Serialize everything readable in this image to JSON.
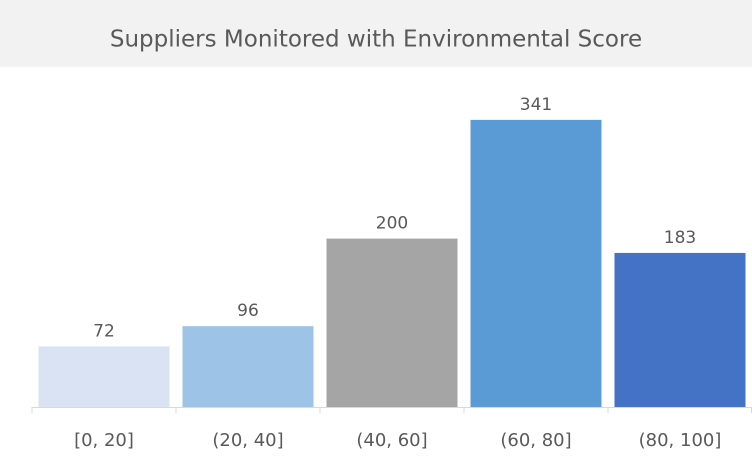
{
  "chart_data": {
    "type": "bar",
    "title": "Suppliers Monitored with Environmental Score",
    "categories": [
      "[0, 20]",
      "(20, 40]",
      "(40, 60]",
      "(60, 80]",
      "(80, 100]"
    ],
    "values": [
      72,
      96,
      200,
      341,
      183
    ],
    "colors": [
      "#dae3f3",
      "#9dc3e6",
      "#a5a5a5",
      "#5b9bd5",
      "#4472c4"
    ]
  }
}
